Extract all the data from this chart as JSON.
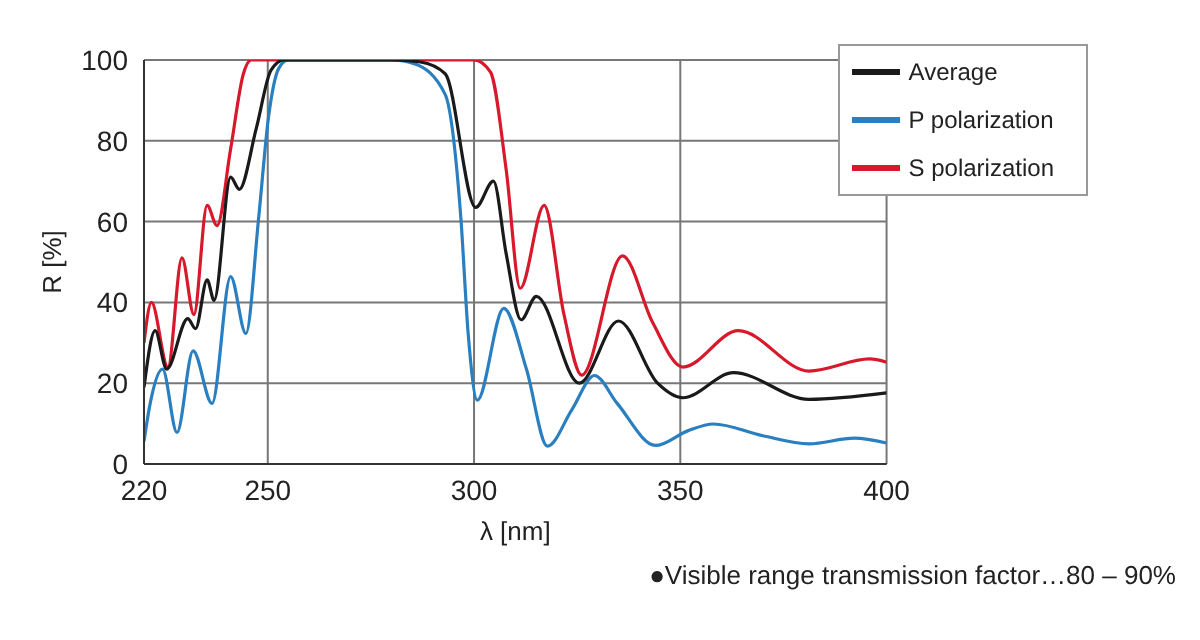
{
  "chart_data": {
    "type": "line",
    "xlabel": "λ [nm]",
    "ylabel": "R [%]",
    "xlim": [
      220,
      400
    ],
    "xticks": [
      220,
      250,
      300,
      350,
      400
    ],
    "ylim": [
      0,
      100
    ],
    "yticks": [
      0,
      20,
      40,
      60,
      80,
      100
    ],
    "grid": true,
    "legend": "top right",
    "marker": "none",
    "line_style": "solid",
    "annotations": [
      "●Visible range transmission factor…80 – 90%"
    ],
    "series": [
      {
        "name": "P polarization",
        "color": "#2a7fc0",
        "x": [
          220,
          221.5,
          224.5,
          228,
          231.9,
          236.5,
          241,
          244.7,
          247.8,
          250.2,
          252.7,
          255,
          260,
          270,
          280,
          285.7,
          293,
          296.8,
          298.6,
          300.8,
          307.2,
          312.7,
          317.8,
          323.7,
          329.2,
          334.7,
          344,
          351.8,
          358,
          370,
          381.2,
          392.2,
          400
        ],
        "values": [
          5.6,
          15,
          23.5,
          7.8,
          28,
          15,
          46.4,
          32.3,
          61,
          86,
          98,
          100,
          100,
          100,
          100,
          99,
          91.5,
          61,
          32,
          15.8,
          38.5,
          23.5,
          4.4,
          13.4,
          21.9,
          15,
          4.6,
          8.2,
          9.9,
          7,
          5,
          6.4,
          5.2
        ]
      },
      {
        "name": "S polarization",
        "color": "#d7192b",
        "x": [
          220,
          221.8,
          225.8,
          229.2,
          232.1,
          235.3,
          237.7,
          241,
          244.1,
          246,
          250,
          260,
          270,
          280,
          290,
          300,
          304,
          307.8,
          311.2,
          317,
          321.8,
          326.1,
          336,
          343.3,
          350.6,
          364.1,
          381.2,
          395.9,
          400
        ],
        "values": [
          30,
          40,
          24,
          51,
          37,
          64,
          59,
          78,
          96.6,
          100,
          100,
          100,
          100,
          100,
          100,
          100,
          97,
          72.8,
          43.5,
          64,
          37,
          22,
          51.5,
          35,
          24,
          33,
          23,
          26,
          25.2
        ]
      },
      {
        "name": "Average",
        "color": "#1a1a1a",
        "x": [
          220,
          222.7,
          225.5,
          230.6,
          232.5,
          235.3,
          237,
          241,
          243.1,
          247.2,
          250.8,
          254,
          260,
          270,
          280,
          287,
          293,
          300.4,
          304.7,
          307.8,
          311.4,
          315.1,
          325.5,
          335,
          344.5,
          350.6,
          362.9,
          381.2,
          400
        ],
        "values": [
          19,
          33,
          23.5,
          36,
          33.5,
          45.6,
          40.5,
          71,
          68,
          83,
          97.5,
          100,
          100,
          100,
          100,
          99.5,
          96.6,
          63.5,
          70,
          52,
          35.7,
          41.5,
          20,
          35.4,
          20,
          16.4,
          22.6,
          16,
          17.6
        ]
      }
    ]
  }
}
